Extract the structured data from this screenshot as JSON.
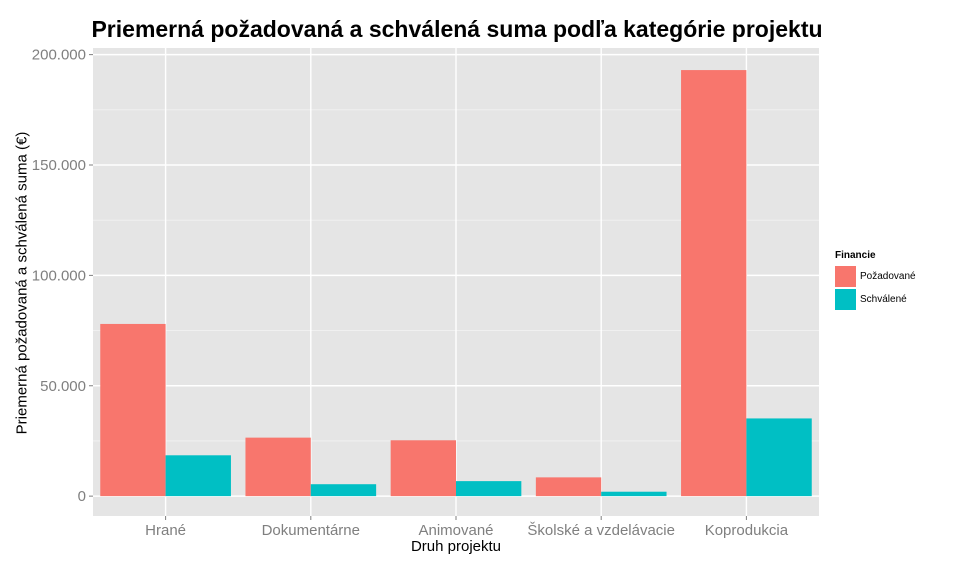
{
  "chart_data": {
    "type": "bar",
    "title": "Priemerná požadovaná a schválená suma podľa kategórie projektu",
    "xlabel": "Druh projektu",
    "ylabel": "Priemerná požadovaná a schválená suma (€)",
    "categories": [
      "Hrané",
      "Dokumentárne",
      "Animované",
      "Školské a vzdelávacie",
      "Koprodukcia"
    ],
    "series": [
      {
        "name": "Požadované",
        "color": "#F8766D",
        "values": [
          78000,
          26500,
          25300,
          8500,
          193000
        ]
      },
      {
        "name": "Schválené",
        "color": "#00BFC4",
        "values": [
          18500,
          5400,
          6800,
          2000,
          35200
        ]
      }
    ],
    "yticks": [
      0,
      50000,
      100000,
      150000,
      200000
    ],
    "ytick_labels": [
      "0",
      "50.000",
      "100.000",
      "150.000",
      "200.000"
    ],
    "ylim": [
      -9000,
      203000
    ],
    "legend_title": "Financie",
    "legend_position": "right",
    "grid": true,
    "panel_background": "#E5E5E5"
  }
}
